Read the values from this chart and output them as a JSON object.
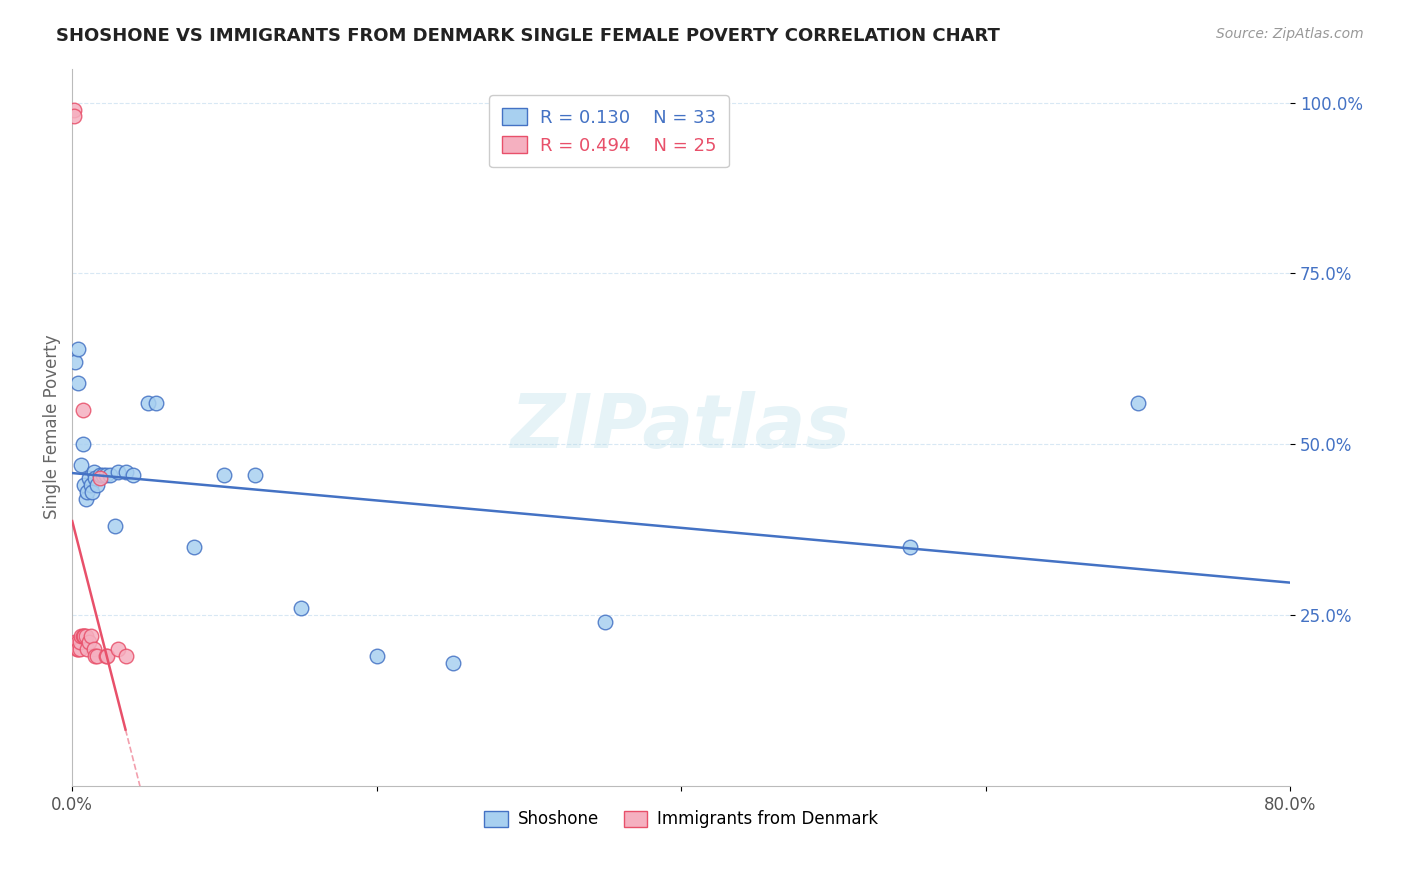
{
  "title": "SHOSHONE VS IMMIGRANTS FROM DENMARK SINGLE FEMALE POVERTY CORRELATION CHART",
  "source": "Source: ZipAtlas.com",
  "ylabel": "Single Female Poverty",
  "watermark": "ZIPatlas",
  "xlim": [
    0.0,
    0.8
  ],
  "ylim": [
    0.0,
    1.05
  ],
  "shoshone_R": 0.13,
  "shoshone_N": 33,
  "denmark_R": 0.494,
  "denmark_N": 25,
  "shoshone_color": "#A8D0F0",
  "denmark_color": "#F5B0C0",
  "shoshone_line_color": "#4472C4",
  "denmark_line_color": "#E8506A",
  "background_color": "#FFFFFF",
  "grid_color": "#D8E8F4",
  "shoshone_x": [
    0.002,
    0.004,
    0.004,
    0.006,
    0.007,
    0.008,
    0.009,
    0.01,
    0.011,
    0.012,
    0.013,
    0.014,
    0.015,
    0.016,
    0.018,
    0.02,
    0.022,
    0.025,
    0.028,
    0.03,
    0.035,
    0.04,
    0.05,
    0.055,
    0.08,
    0.1,
    0.12,
    0.15,
    0.2,
    0.25,
    0.35,
    0.55,
    0.7
  ],
  "shoshone_y": [
    0.62,
    0.64,
    0.59,
    0.47,
    0.5,
    0.44,
    0.42,
    0.43,
    0.45,
    0.44,
    0.43,
    0.46,
    0.45,
    0.44,
    0.455,
    0.455,
    0.455,
    0.455,
    0.38,
    0.46,
    0.46,
    0.455,
    0.56,
    0.56,
    0.35,
    0.455,
    0.455,
    0.26,
    0.19,
    0.18,
    0.24,
    0.35,
    0.56
  ],
  "denmark_x": [
    0.001,
    0.001,
    0.002,
    0.003,
    0.004,
    0.004,
    0.005,
    0.005,
    0.006,
    0.007,
    0.007,
    0.008,
    0.008,
    0.009,
    0.01,
    0.011,
    0.012,
    0.014,
    0.015,
    0.016,
    0.018,
    0.022,
    0.023,
    0.03,
    0.035
  ],
  "denmark_y": [
    0.99,
    0.98,
    0.21,
    0.2,
    0.21,
    0.2,
    0.2,
    0.21,
    0.22,
    0.55,
    0.22,
    0.22,
    0.22,
    0.22,
    0.2,
    0.21,
    0.22,
    0.2,
    0.19,
    0.19,
    0.45,
    0.19,
    0.19,
    0.2,
    0.19
  ]
}
